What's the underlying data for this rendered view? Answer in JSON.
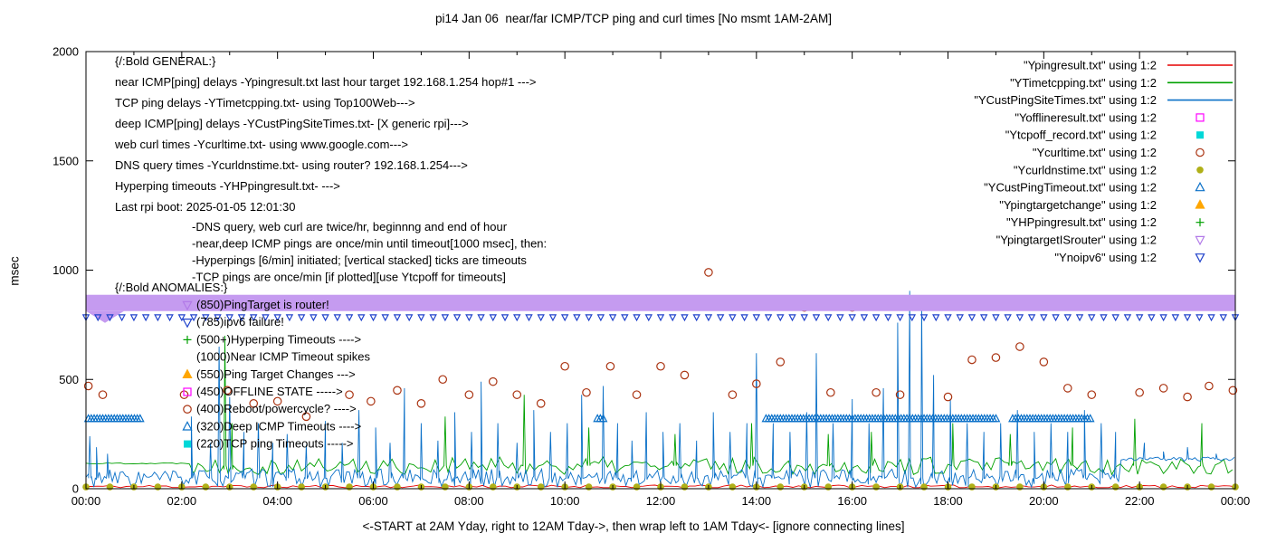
{
  "title": "pi14 Jan 06  near/far ICMP/TCP ping and curl times [No msmt 1AM-2AM]",
  "axes": {
    "ylabel": "msec",
    "xlabel": "<-START at 2AM Yday, right to 12AM Tday->, then wrap left to 1AM Tday<- [ignore connecting lines]",
    "yticks": [
      0,
      500,
      1000,
      1500,
      2000
    ],
    "xticks": [
      "00:00",
      "02:00",
      "04:00",
      "06:00",
      "08:00",
      "10:00",
      "12:00",
      "14:00",
      "16:00",
      "18:00",
      "20:00",
      "22:00",
      "00:00"
    ]
  },
  "legend": {
    "items": [
      {
        "label": "\"Ypingresult.txt\" using 1:2",
        "sample": "line",
        "color": "#e60000"
      },
      {
        "label": "\"YTimetcpping.txt\" using 1:2",
        "sample": "line",
        "color": "#00a000"
      },
      {
        "label": "\"YCustPingSiteTimes.txt\" using 1:2",
        "sample": "line",
        "color": "#0a70c8"
      },
      {
        "label": "\"Yofflineresult.txt\" using 1:2",
        "sample": "square-open",
        "color": "#ff00ff"
      },
      {
        "label": "\"Ytcpoff_record.txt\" using 1:2",
        "sample": "square-filled",
        "color": "#00d8d8"
      },
      {
        "label": "\"Ycurltime.txt\" using 1:2",
        "sample": "circle-open",
        "color": "#aa3311"
      },
      {
        "label": "\"Ycurldnstime.txt\" using 1:2",
        "sample": "circle-filled",
        "color": "#b0b018"
      },
      {
        "label": "\"YCustPingTimeout.txt\" using 1:2",
        "sample": "tri-up-open",
        "color": "#0a70c8"
      },
      {
        "label": "\"Ypingtargetchange\" using 1:2",
        "sample": "tri-up-filled",
        "color": "#ffa600"
      },
      {
        "label": "\"YHPpingresult.txt\" using 1:2",
        "sample": "plus",
        "color": "#00a000"
      },
      {
        "label": "\"YpingtargetISrouter\" using 1:2",
        "sample": "tri-down-open",
        "color": "#b27ae8"
      },
      {
        "label": "\"Ynoipv6\" using 1:2",
        "sample": "tri-down-open",
        "color": "#2244cc"
      }
    ]
  },
  "annotations": {
    "general": [
      "{/:Bold GENERAL:}",
      "near ICMP[ping] delays -Ypingresult.txt last hour target 192.168.1.254 hop#1 --->",
      "TCP ping delays -YTimetcpping.txt- using Top100Web--->",
      "deep ICMP[ping] delays -YCustPingSiteTimes.txt- [X generic rpi]--->",
      "web curl times -Ycurltime.txt- using www.google.com--->",
      "DNS query times -Ycurldnstime.txt- using router? 192.168.1.254--->",
      "Hyperping timeouts -YHPpingresult.txt- --->",
      "Last rpi boot: 2025-01-05 12:01:30",
      "-DNS query, web curl are twice/hr, beginnng and end of hour",
      "-near,deep ICMP pings are once/min until timeout[1000 msec], then:",
      "-Hyperpings [6/min] initiated; [vertical stacked] ticks are timeouts",
      "-TCP pings are once/min [if plotted][use Ytcpoff for timeouts]"
    ],
    "anomalies_header": "{/:Bold ANOMALIES:}",
    "anomalies": [
      {
        "marker": "tri-down-open",
        "color": "#b27ae8",
        "text": "(850)PingTarget is router!"
      },
      {
        "marker": "tri-down-open",
        "color": "#2244cc",
        "text": "(785)ipv6 failure!"
      },
      {
        "marker": "plus",
        "color": "#00a000",
        "text": "(500+)Hyperping Timeouts ---->"
      },
      {
        "marker": "none",
        "color": null,
        "text": "(1000)Near ICMP Timeout spikes"
      },
      {
        "marker": "tri-up-filled",
        "color": "#ffa600",
        "text": "(550)Ping Target Changes --->"
      },
      {
        "marker": "square-open",
        "color": "#ff00ff",
        "text": "(450)OFFLINE STATE ----->"
      },
      {
        "marker": "circle-open",
        "color": "#aa3311",
        "text": "(400)Reboot/powercycle? ---->"
      },
      {
        "marker": "tri-up-open",
        "color": "#0a70c8",
        "text": "(320)Deep ICMP Timeouts ---->"
      },
      {
        "marker": "square-filled",
        "color": "#00d8d8",
        "text": "(220)TCP ping Timeouts ----->"
      }
    ]
  },
  "chart_data": {
    "type": "line",
    "x_unit": "hours",
    "xlim": [
      0,
      24
    ],
    "ylim": [
      0,
      2000
    ],
    "grid": false,
    "legend_position": "top-right",
    "series": [
      {
        "name": "Ypingresult",
        "kind": "line",
        "color": "#e60000",
        "step": 0.12,
        "baseline": 10,
        "jitter": 7,
        "seed": 11,
        "spikes": []
      },
      {
        "name": "YTimetcpping",
        "kind": "line",
        "color": "#00a000",
        "step": 0.09,
        "baseline": 105,
        "jitter": 40,
        "seed": 22,
        "flat_until": 2.2,
        "flat_value": 116,
        "spikes": [
          [
            2.9,
            700
          ],
          [
            3.05,
            300
          ],
          [
            7.5,
            330
          ],
          [
            9.15,
            430
          ],
          [
            10.5,
            280
          ],
          [
            12.3,
            250
          ],
          [
            13.9,
            300
          ],
          [
            15.5,
            250
          ],
          [
            16.4,
            260
          ],
          [
            18.1,
            300
          ],
          [
            19.3,
            250
          ],
          [
            20.6,
            280
          ],
          [
            21.9,
            320
          ],
          [
            23.3,
            300
          ]
        ]
      },
      {
        "name": "YCustPingSiteTimes",
        "kind": "line",
        "color": "#0a70c8",
        "step": 0.055,
        "baseline": 48,
        "jitter": 42,
        "seed": 33,
        "tail_from": 21.6,
        "tail_value": 135,
        "spikes": [
          [
            0.08,
            240
          ],
          [
            0.22,
            190
          ],
          [
            0.45,
            160
          ],
          [
            2.2,
            330
          ],
          [
            2.6,
            210
          ],
          [
            2.78,
            650
          ],
          [
            3.0,
            420
          ],
          [
            3.3,
            260
          ],
          [
            3.6,
            300
          ],
          [
            3.9,
            210
          ],
          [
            4.2,
            250
          ],
          [
            4.6,
            200
          ],
          [
            5.0,
            310
          ],
          [
            5.35,
            210
          ],
          [
            5.7,
            360
          ],
          [
            6.05,
            280
          ],
          [
            6.35,
            210
          ],
          [
            6.65,
            460
          ],
          [
            7.0,
            300
          ],
          [
            7.35,
            220
          ],
          [
            7.7,
            350
          ],
          [
            8.05,
            260
          ],
          [
            8.25,
            490
          ],
          [
            8.6,
            300
          ],
          [
            9.0,
            210
          ],
          [
            9.35,
            360
          ],
          [
            9.7,
            260
          ],
          [
            10.05,
            300
          ],
          [
            10.35,
            430
          ],
          [
            10.8,
            470
          ],
          [
            11.1,
            300
          ],
          [
            11.4,
            220
          ],
          [
            11.7,
            350
          ],
          [
            12.05,
            260
          ],
          [
            12.4,
            300
          ],
          [
            12.75,
            220
          ],
          [
            13.1,
            350
          ],
          [
            13.45,
            260
          ],
          [
            13.8,
            300
          ],
          [
            14.0,
            620
          ],
          [
            14.35,
            300
          ],
          [
            14.7,
            260
          ],
          [
            15.05,
            350
          ],
          [
            15.25,
            620
          ],
          [
            15.6,
            300
          ],
          [
            16.0,
            410
          ],
          [
            16.35,
            300
          ],
          [
            16.65,
            460
          ],
          [
            16.95,
            760
          ],
          [
            17.2,
            905
          ],
          [
            17.45,
            850
          ],
          [
            17.7,
            520
          ],
          [
            18.05,
            410
          ],
          [
            18.4,
            300
          ],
          [
            18.75,
            260
          ],
          [
            19.1,
            300
          ],
          [
            19.45,
            360
          ],
          [
            19.8,
            260
          ],
          [
            20.15,
            300
          ],
          [
            20.5,
            260
          ],
          [
            20.85,
            360
          ],
          [
            21.2,
            300
          ],
          [
            21.5,
            260
          ],
          [
            22.1,
            210
          ],
          [
            22.5,
            170
          ],
          [
            23.0,
            190
          ],
          [
            23.6,
            160
          ]
        ]
      },
      {
        "name": "Yofflineresult",
        "kind": "points",
        "marker": "square-open",
        "color": "#ff00ff",
        "points": []
      },
      {
        "name": "Ytcpoff_record",
        "kind": "points",
        "marker": "square-filled",
        "color": "#00d8d8",
        "points": []
      },
      {
        "name": "Ycurltime",
        "kind": "points",
        "marker": "circle-open",
        "color": "#aa3311",
        "points": [
          [
            0.05,
            470
          ],
          [
            0.35,
            430
          ],
          [
            2.05,
            430
          ],
          [
            2.95,
            450
          ],
          [
            3.5,
            390
          ],
          [
            4.0,
            400
          ],
          [
            4.6,
            330
          ],
          [
            5.5,
            430
          ],
          [
            5.95,
            400
          ],
          [
            6.5,
            450
          ],
          [
            7.0,
            390
          ],
          [
            7.45,
            500
          ],
          [
            8.0,
            430
          ],
          [
            8.5,
            490
          ],
          [
            9.0,
            430
          ],
          [
            9.5,
            390
          ],
          [
            10.0,
            560
          ],
          [
            10.45,
            440
          ],
          [
            10.95,
            560
          ],
          [
            11.5,
            430
          ],
          [
            12.0,
            560
          ],
          [
            12.5,
            520
          ],
          [
            13.0,
            990
          ],
          [
            13.5,
            430
          ],
          [
            14.0,
            480
          ],
          [
            14.5,
            580
          ],
          [
            15.0,
            830
          ],
          [
            15.55,
            440
          ],
          [
            16.0,
            830
          ],
          [
            16.5,
            440
          ],
          [
            17.0,
            430
          ],
          [
            18.0,
            420
          ],
          [
            18.5,
            590
          ],
          [
            19.0,
            600
          ],
          [
            19.5,
            650
          ],
          [
            20.0,
            580
          ],
          [
            20.5,
            460
          ],
          [
            21.0,
            430
          ],
          [
            22.0,
            440
          ],
          [
            22.5,
            460
          ],
          [
            23.0,
            420
          ],
          [
            23.45,
            470
          ],
          [
            23.95,
            450
          ]
        ]
      },
      {
        "name": "Ycurldnstime",
        "kind": "points-row",
        "marker": "circle-filled",
        "color": "#b0b018",
        "y": 8,
        "x_from": 0,
        "x_to": 24,
        "x_step": 0.5,
        "size": 1
      },
      {
        "name": "YCustPingTimeout",
        "kind": "ranges",
        "marker": "tri-up-open",
        "color": "#0a70c8",
        "y": 320,
        "x_step": 0.06,
        "ranges": [
          [
            0.05,
            1.15
          ],
          [
            10.68,
            10.84
          ],
          [
            14.2,
            19.0
          ],
          [
            19.35,
            21.0
          ]
        ]
      },
      {
        "name": "Ypingtargetchange",
        "kind": "points",
        "marker": "tri-up-filled",
        "color": "#ffa600",
        "points": []
      },
      {
        "name": "YHPpingresult",
        "kind": "points",
        "marker": "plus",
        "color": "#00a000",
        "points": []
      },
      {
        "name": "YpingtargetISrouter",
        "kind": "band",
        "color": "#c59bf0",
        "y": 850,
        "x_from": 0,
        "x_to": 24
      },
      {
        "name": "Ynoipv6",
        "kind": "points-row",
        "marker": "tri-down-open",
        "color": "#2244cc",
        "y": 785,
        "x_from": 0,
        "x_to": 24,
        "x_step": 0.25,
        "size": 0.7
      }
    ]
  }
}
